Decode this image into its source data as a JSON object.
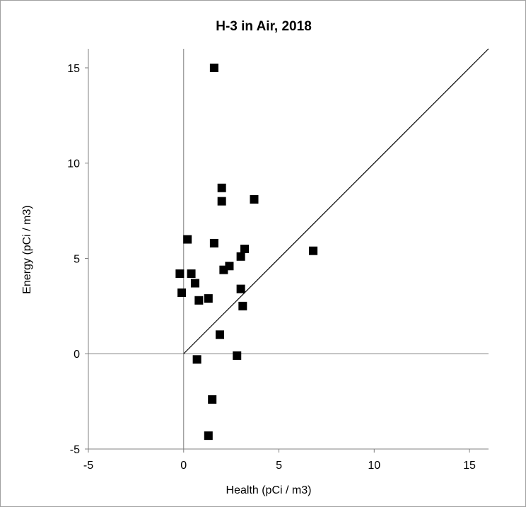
{
  "chart_data": {
    "type": "scatter",
    "title": "H-3 in Air, 2018",
    "xlabel": "Health (pCi / m3)",
    "ylabel": "Energy (pCi / m3)",
    "xlim": [
      -5,
      16
    ],
    "ylim": [
      -5,
      16
    ],
    "xticks": [
      -5,
      0,
      5,
      10,
      15
    ],
    "yticks": [
      -5,
      0,
      5,
      10,
      15
    ],
    "reference_line": {
      "type": "identity",
      "from": [
        0,
        0
      ],
      "to": [
        16,
        16
      ]
    },
    "zero_lines": true,
    "grid": false,
    "marker": "square",
    "marker_color": "#000000",
    "points": [
      {
        "x": 1.6,
        "y": 15.0
      },
      {
        "x": 2.0,
        "y": 8.7
      },
      {
        "x": 2.0,
        "y": 8.0
      },
      {
        "x": 3.7,
        "y": 8.1
      },
      {
        "x": 0.2,
        "y": 6.0
      },
      {
        "x": 1.6,
        "y": 5.8
      },
      {
        "x": 3.2,
        "y": 5.5
      },
      {
        "x": 3.0,
        "y": 5.1
      },
      {
        "x": 6.8,
        "y": 5.4
      },
      {
        "x": 2.4,
        "y": 4.6
      },
      {
        "x": 2.1,
        "y": 4.4
      },
      {
        "x": -0.2,
        "y": 4.2
      },
      {
        "x": 0.4,
        "y": 4.2
      },
      {
        "x": 0.6,
        "y": 3.7
      },
      {
        "x": -0.1,
        "y": 3.2
      },
      {
        "x": 3.0,
        "y": 3.4
      },
      {
        "x": 0.8,
        "y": 2.8
      },
      {
        "x": 1.3,
        "y": 2.9
      },
      {
        "x": 3.1,
        "y": 2.5
      },
      {
        "x": 1.9,
        "y": 1.0
      },
      {
        "x": 0.7,
        "y": -0.3
      },
      {
        "x": 2.8,
        "y": -0.1
      },
      {
        "x": 1.5,
        "y": -2.4
      },
      {
        "x": 1.3,
        "y": -4.3
      }
    ]
  }
}
